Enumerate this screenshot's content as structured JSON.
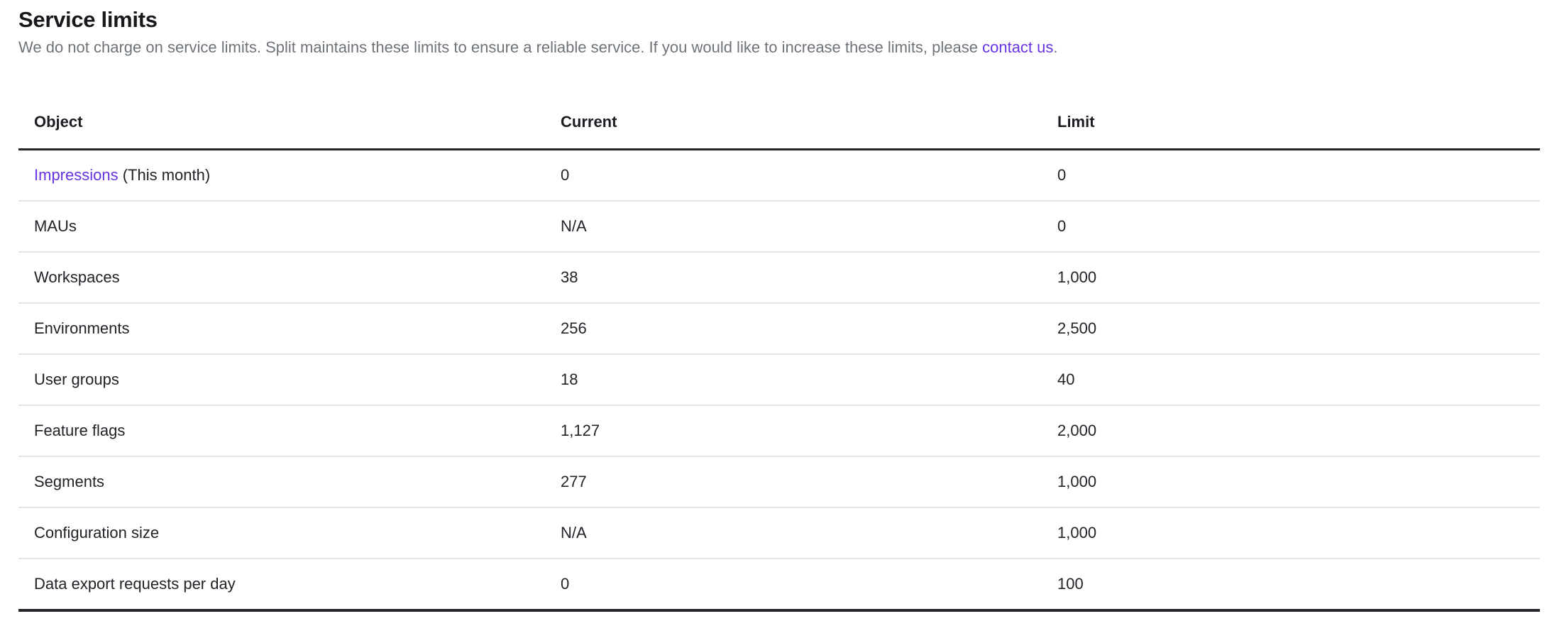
{
  "page": {
    "title": "Service limits",
    "description_before_link": "We do not charge on service limits. Split maintains these limits to ensure a reliable service. If you would like to increase these limits, please ",
    "description_link": "contact us",
    "description_after_link": "."
  },
  "table": {
    "columns": [
      "Object",
      "Current",
      "Limit"
    ],
    "rows": [
      {
        "object_link": "Impressions",
        "object_suffix": " (This month)",
        "current": "0",
        "limit": "0"
      },
      {
        "object": "MAUs",
        "current": "N/A",
        "limit": "0"
      },
      {
        "object": "Workspaces",
        "current": "38",
        "limit": "1,000"
      },
      {
        "object": "Environments",
        "current": "256",
        "limit": "2,500"
      },
      {
        "object": "User groups",
        "current": "18",
        "limit": "40"
      },
      {
        "object": "Feature flags",
        "current": "1,127",
        "limit": "2,000"
      },
      {
        "object": "Segments",
        "current": "277",
        "limit": "1,000"
      },
      {
        "object": "Configuration size",
        "current": "N/A",
        "limit": "1,000"
      },
      {
        "object": "Data export requests per day",
        "current": "0",
        "limit": "100"
      }
    ]
  },
  "colors": {
    "accent_link": "#6733e3",
    "body_text": "#212329",
    "heading_text": "#17181c",
    "muted_text": "#6e737a",
    "divider_light": "#e4e5e8",
    "border_dark": "#23252b"
  }
}
